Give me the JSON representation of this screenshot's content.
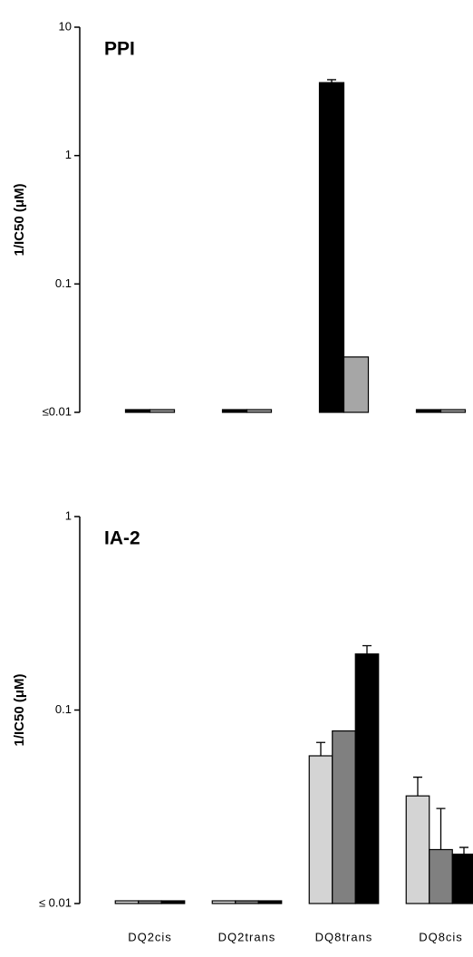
{
  "chart_data": [
    {
      "type": "bar",
      "title": "PPI",
      "y_label": "1/IC50 (μM)",
      "log_scale": true,
      "ylim": [
        0.01,
        10
      ],
      "yticks": [
        10,
        1,
        0.1,
        {
          "value": 0.01,
          "label": "≤0.01"
        }
      ],
      "series": [
        {
          "color": "#000000",
          "values": [
            0.01,
            0.01,
            3.7,
            0.01
          ],
          "errors": [
            null,
            null,
            0.2,
            null
          ]
        },
        {
          "color": "#a6a6a6",
          "values": [
            0.01,
            0.01,
            0.027,
            0.01
          ],
          "errors": [
            null,
            null,
            null,
            null
          ]
        }
      ]
    },
    {
      "type": "bar",
      "title": "IA-2",
      "y_label": "1/IC50 (μM)",
      "log_scale": true,
      "ylim": [
        0.01,
        1
      ],
      "yticks": [
        1,
        0.1,
        {
          "value": 0.01,
          "label": "≤ 0.01"
        }
      ],
      "categories": [
        "DQ2cis",
        "DQ2trans",
        "DQ8trans",
        "DQ8cis"
      ],
      "series": [
        {
          "color": "#d4d4d4",
          "values": [
            0.01,
            0.01,
            0.058,
            0.036
          ],
          "errors": [
            null,
            null,
            0.01,
            0.009
          ]
        },
        {
          "color": "#808080",
          "values": [
            0.01,
            0.01,
            0.078,
            0.019
          ],
          "errors": [
            null,
            null,
            null,
            0.012
          ]
        },
        {
          "color": "#000000",
          "values": [
            0.01,
            0.01,
            0.195,
            0.018
          ],
          "errors": [
            null,
            null,
            0.02,
            0.0015
          ]
        }
      ]
    }
  ]
}
